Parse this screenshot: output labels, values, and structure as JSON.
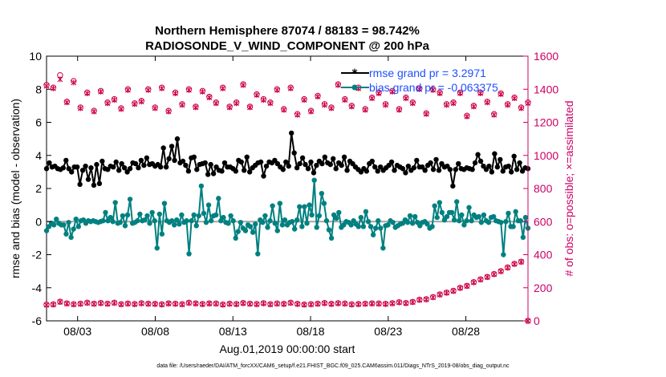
{
  "chart_data": {
    "type": "line",
    "title": "Northern Hemisphere 87074 / 88183 = 98.742%",
    "subtitle": "RADIOSONDE_V_WIND_COMPONENT @ 200 hPa",
    "xlabel": "Aug.01,2019 00:00:00 start",
    "ylabel_left": "rmse and bias (model - observation)",
    "ylabel_right": "# of obs: o=possible; ×=assimilated",
    "footer": "data file: /Users/raeder/DAI/ATM_forcXX/CAM6_setup/f.e21.FHIST_BGC.f09_025.CAM6assim.011/Diags_NTrS_2019-08/obs_diag_output.nc",
    "x_tick_labels": [
      "08/03",
      "08/08",
      "08/13",
      "08/18",
      "08/23",
      "08/28"
    ],
    "x_tick_days": [
      3,
      8,
      13,
      18,
      23,
      28
    ],
    "xlim_days": [
      1.0,
      32.0
    ],
    "ylim_left": [
      -6,
      10
    ],
    "yticks_left": [
      "-6",
      "-4",
      "-2",
      "0",
      "2",
      "4",
      "6",
      "8",
      "10"
    ],
    "ylim_right": [
      0,
      1600
    ],
    "yticks_right": [
      "0",
      "200",
      "400",
      "600",
      "800",
      "1000",
      "1200",
      "1400",
      "1600"
    ],
    "legend_position": "top-right",
    "colors": {
      "rmse": "#000000",
      "bias": "#008080",
      "obs": "#cc0044",
      "right_axis": "#cc0066",
      "legend_text": "#1f4fff",
      "zero_line": "#a6a6a6"
    },
    "series": [
      {
        "name": "rmse grand pr = 3.2971",
        "axis": "left",
        "values": [
          3.2,
          3.55,
          3.3,
          3.35,
          3.2,
          3.15,
          3.25,
          3.7,
          3.2,
          3.0,
          3.3,
          3.3,
          2.25,
          3.1,
          3.35,
          2.55,
          3.25,
          2.2,
          3.45,
          2.3,
          3.65,
          3.2,
          3.15,
          3.35,
          3.3,
          3.6,
          3.1,
          3.5,
          3.25,
          3.0,
          3.2,
          3.55,
          3.5,
          3.25,
          3.7,
          3.4,
          3.85,
          3.45,
          3.5,
          3.35,
          3.45,
          3.3,
          4.45,
          3.3,
          3.8,
          4.55,
          3.7,
          5.0,
          3.55,
          3.65,
          3.4,
          3.05,
          3.85,
          3.9,
          3.15,
          3.45,
          3.5,
          3.55,
          2.85,
          3.45,
          2.9,
          3.3,
          3.1,
          3.05,
          3.55,
          3.3,
          3.3,
          3.2,
          3.05,
          3.7,
          3.6,
          3.1,
          3.9,
          3.0,
          3.25,
          3.4,
          3.55,
          3.6,
          2.75,
          3.35,
          3.6,
          3.55,
          3.7,
          3.5,
          3.3,
          3.15,
          3.6,
          3.35,
          5.35,
          4.15,
          3.25,
          3.5,
          3.85,
          3.45,
          3.2,
          3.6,
          2.95,
          3.4,
          3.65,
          3.5,
          3.9,
          3.55,
          3.45,
          3.8,
          3.2,
          3.55,
          3.4,
          3.9,
          3.1,
          3.65,
          3.5,
          3.3,
          3.15,
          3.0,
          3.2,
          3.05,
          3.5,
          3.65,
          3.3,
          3.05,
          3.3,
          3.1,
          3.25,
          3.4,
          3.6,
          3.1,
          3.4,
          3.3,
          3.2,
          2.95,
          3.35,
          3.1,
          3.25,
          3.7,
          3.3,
          3.3,
          3.1,
          3.4,
          3.55,
          3.15,
          3.75,
          3.1,
          3.5,
          3.3,
          3.35,
          3.15,
          2.15,
          3.15,
          3.5,
          3.2,
          3.15,
          3.25,
          3.2,
          3.15,
          3.55,
          4.05,
          3.65,
          3.35,
          3.15,
          3.35,
          3.0,
          4.1,
          3.3,
          3.75,
          3.05,
          3.3,
          3.35,
          3.0,
          3.95,
          3.15,
          3.55,
          3.05,
          3.25,
          3.2
        ]
      },
      {
        "name": "bias grand pr = -0.063375",
        "axis": "left",
        "values": [
          -0.55,
          -0.3,
          -0.1,
          -0.2,
          0.15,
          -0.1,
          -0.2,
          -0.2,
          -0.75,
          -0.05,
          -0.95,
          -0.45,
          0.15,
          -0.3,
          0.05,
          0.1,
          -0.1,
          0.05,
          0.0,
          0.05,
          0.0,
          -0.05,
          0.0,
          0.05,
          0.55,
          0.05,
          0.25,
          0.0,
          1.15,
          -0.1,
          -0.05,
          0.35,
          -0.25,
          0.4,
          1.35,
          -0.1,
          -0.05,
          0.05,
          0.45,
          0.05,
          0.1,
          0.35,
          -0.1,
          0.55,
          0.05,
          -1.6,
          0.45,
          -0.75,
          1.1,
          0.05,
          -0.05,
          0.05,
          -0.2,
          0.1,
          -0.15,
          0.4,
          -0.05,
          0.05,
          -1.95,
          0.05,
          0.4,
          -0.25,
          0.35,
          2.15,
          0.5,
          -0.05,
          1.0,
          0.05,
          0.35,
          0.4,
          1.4,
          0.05,
          0.25,
          -0.05,
          -0.1,
          0.35,
          0.05,
          -1.0,
          -0.6,
          -0.05,
          -0.4,
          -0.55,
          -0.2,
          -0.3,
          -0.65,
          -0.15,
          -1.95,
          0.1,
          -0.05,
          0.35,
          -0.35,
          0.05,
          0.95,
          -0.1,
          -0.55,
          1.1,
          -0.2,
          0.1,
          -0.2,
          -0.05,
          0.0,
          -0.45,
          0.1,
          0.9,
          -0.3,
          0.9,
          -0.1,
          1.0,
          0.4,
          2.5,
          -0.35,
          0.35,
          1.7,
          1.1,
          0.05,
          -0.5,
          -1.0,
          0.4,
          0.2,
          0.55,
          -0.35,
          -0.2,
          0.0,
          -0.05,
          -0.2,
          0.05,
          -0.15,
          -0.3,
          0.25,
          -0.3,
          0.6,
          0.0,
          -0.3,
          -0.8,
          -0.4,
          0.05,
          -0.4,
          -1.6,
          -0.25,
          -0.2,
          0.05,
          -0.05,
          -0.35,
          -0.25,
          -0.15,
          -0.1,
          0.1,
          -0.05,
          0.35,
          -0.1,
          0.3,
          -0.05,
          -0.25,
          -0.05,
          0.0,
          -0.15,
          -0.4,
          -0.3,
          0.95,
          0.25,
          1.15,
          0.55,
          0.1,
          0.3,
          0.55,
          0.55,
          0.1,
          1.2,
          0.05,
          0.4,
          -0.2,
          0.05,
          0.85,
          0.05,
          0.4,
          0.25,
          0.3,
          -0.05,
          0.4,
          0.05,
          -0.05,
          0.25,
          0.3,
          0.05,
          0.0,
          -0.05,
          -2.0,
          0.0,
          0.5,
          -0.3,
          -0.3,
          0.6,
          0.05,
          0.05,
          -0.95,
          0.25,
          -0.4
        ]
      },
      {
        "name": "obs possible (o)",
        "axis": "right",
        "x_day_step": 0.5,
        "values": [
          1426,
          1410,
          1485,
          1325,
          1450,
          1290,
          1380,
          1270,
          1390,
          1320,
          1340,
          1285,
          1400,
          1315,
          1330,
          1400,
          1290,
          1410,
          1270,
          1380,
          1310,
          1400,
          1295,
          1390,
          1355,
          1320,
          1410,
          1295,
          1320,
          1430,
          1295,
          1370,
          1340,
          1320,
          1400,
          1280,
          1410,
          1250,
          1340,
          1270,
          1360,
          1310,
          1290,
          1430,
          1340,
          1300,
          1410,
          1280,
          1350,
          1380,
          1310,
          1390,
          1280,
          1350,
          1320,
          1405,
          1255,
          1400,
          1380,
          1310,
          1320,
          1380,
          1240,
          1300,
          1380,
          1325,
          1250,
          1375,
          1310,
          1350,
          1290,
          1320
        ]
      },
      {
        "name": "obs assimilated (x)",
        "axis": "right",
        "x_day_step": 0.5,
        "values": [
          1420,
          1405,
          1460,
          1320,
          1440,
          1285,
          1375,
          1265,
          1385,
          1315,
          1335,
          1280,
          1395,
          1310,
          1325,
          1395,
          1285,
          1405,
          1265,
          1375,
          1305,
          1395,
          1290,
          1385,
          1350,
          1315,
          1405,
          1290,
          1315,
          1425,
          1290,
          1365,
          1335,
          1315,
          1395,
          1275,
          1405,
          1245,
          1335,
          1265,
          1355,
          1305,
          1285,
          1425,
          1335,
          1295,
          1405,
          1275,
          1345,
          1375,
          1305,
          1385,
          1275,
          1345,
          1315,
          1400,
          1250,
          1395,
          1375,
          1305,
          1315,
          1375,
          1235,
          1295,
          1375,
          1320,
          1245,
          1370,
          1305,
          1345,
          1285,
          1315
        ]
      },
      {
        "name": "obs bottom possible (o)",
        "axis": "right",
        "x_day_step": 0.5,
        "values": [
          98,
          100,
          116,
          106,
          101,
          104,
          110,
          104,
          108,
          104,
          110,
          101,
          105,
          102,
          107,
          104,
          103,
          100,
          106,
          104,
          101,
          110,
          106,
          102,
          106,
          105,
          99,
          104,
          102,
          108,
          104,
          102,
          107,
          101,
          105,
          103,
          110,
          103,
          99,
          101,
          104,
          108,
          103,
          107,
          105,
          100,
          102,
          104,
          106,
          105,
          103,
          107,
          113,
          108,
          115,
          128,
          131,
          144,
          160,
          171,
          182,
          200,
          212,
          234,
          251,
          266,
          283,
          301,
          323,
          345,
          358,
          0
        ]
      },
      {
        "name": "obs bottom assimilated (x)",
        "axis": "right",
        "x_day_step": 0.5,
        "values": [
          96,
          98,
          114,
          104,
          99,
          102,
          108,
          102,
          106,
          102,
          108,
          99,
          103,
          100,
          105,
          102,
          101,
          98,
          104,
          102,
          99,
          108,
          104,
          100,
          104,
          103,
          97,
          102,
          100,
          106,
          102,
          100,
          105,
          99,
          103,
          101,
          108,
          101,
          97,
          99,
          102,
          106,
          101,
          105,
          103,
          98,
          100,
          102,
          104,
          103,
          101,
          105,
          111,
          106,
          113,
          126,
          129,
          142,
          158,
          169,
          180,
          198,
          210,
          232,
          249,
          264,
          281,
          299,
          321,
          343,
          356,
          0
        ]
      }
    ]
  }
}
